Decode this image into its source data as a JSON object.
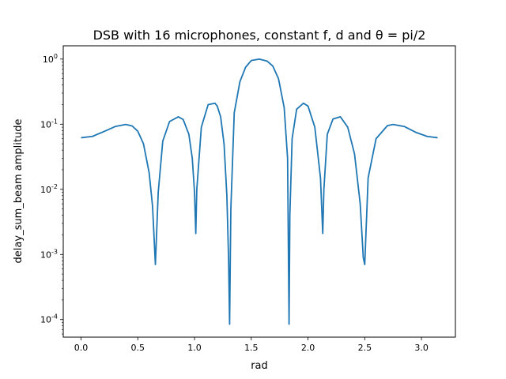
{
  "chart_data": {
    "type": "line",
    "title": "DSB with 16 microphones, constant f, d and θ = pi/2",
    "xlabel": "rad",
    "ylabel": "delay_sum_beam amplitude",
    "xscale": "linear",
    "yscale": "log",
    "xlim": [
      -0.157,
      3.299
    ],
    "ylim": [
      5.37e-05,
      1.6
    ],
    "xticks": [
      0.0,
      0.5,
      1.0,
      1.5,
      2.0,
      2.5,
      3.0
    ],
    "xticklabels": [
      "0.0",
      "0.5",
      "1.0",
      "1.5",
      "2.0",
      "2.5",
      "3.0"
    ],
    "yticks": [
      0.0001,
      0.001,
      0.01,
      0.1,
      1
    ],
    "yticklabels": [
      "10^-4",
      "10^-3",
      "10^-2",
      "10^-1",
      "10^0"
    ],
    "grid": false,
    "series": [
      {
        "color": "#1f77b4",
        "x": [
          0.0,
          0.1,
          0.2,
          0.3,
          0.393,
          0.45,
          0.5,
          0.55,
          0.6,
          0.63,
          0.655,
          0.68,
          0.72,
          0.78,
          0.857,
          0.9,
          0.95,
          0.98,
          1.0,
          1.011,
          1.02,
          1.06,
          1.12,
          1.18,
          1.2,
          1.23,
          1.26,
          1.285,
          1.3,
          1.309,
          1.32,
          1.35,
          1.4,
          1.45,
          1.5,
          1.571,
          1.64,
          1.69,
          1.74,
          1.79,
          1.82,
          1.833,
          1.84,
          1.86,
          1.9,
          1.96,
          2.0,
          2.06,
          2.11,
          2.13,
          2.14,
          2.17,
          2.22,
          2.285,
          2.35,
          2.41,
          2.46,
          2.487,
          2.5,
          2.53,
          2.6,
          2.7,
          2.75,
          2.85,
          2.95,
          3.05,
          3.142
        ],
        "y": [
          0.062,
          0.065,
          0.077,
          0.092,
          0.099,
          0.094,
          0.078,
          0.05,
          0.018,
          0.0055,
          0.0007,
          0.009,
          0.055,
          0.11,
          0.13,
          0.118,
          0.07,
          0.03,
          0.009,
          0.0021,
          0.01,
          0.09,
          0.2,
          0.21,
          0.19,
          0.13,
          0.05,
          0.008,
          0.00085,
          8.5e-05,
          0.005,
          0.15,
          0.45,
          0.75,
          0.95,
          1.0,
          0.93,
          0.78,
          0.5,
          0.18,
          0.03,
          8.5e-05,
          0.004,
          0.06,
          0.17,
          0.21,
          0.19,
          0.09,
          0.015,
          0.0021,
          0.01,
          0.07,
          0.12,
          0.13,
          0.09,
          0.035,
          0.006,
          0.0009,
          0.0007,
          0.015,
          0.06,
          0.095,
          0.099,
          0.092,
          0.075,
          0.065,
          0.062
        ]
      }
    ]
  }
}
